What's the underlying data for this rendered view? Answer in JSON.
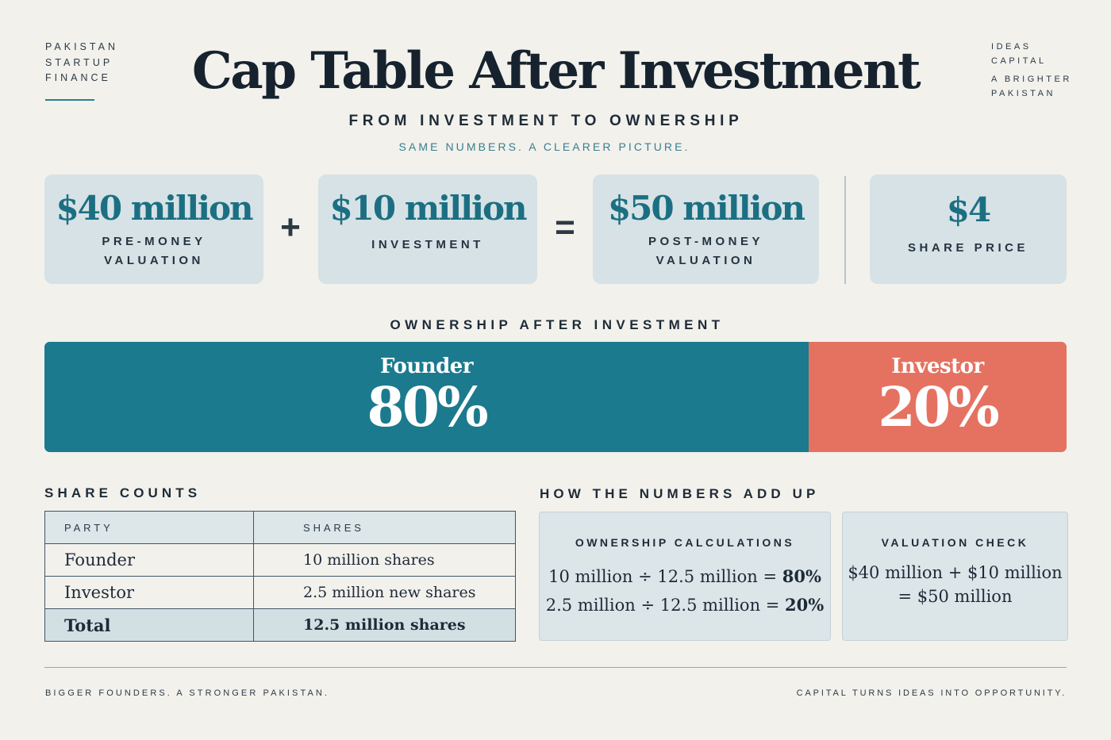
{
  "brand_left": [
    "PAKISTAN",
    "STARTUP",
    "FINANCE"
  ],
  "brand_right": [
    "IDEAS",
    "CAPITAL",
    "A BRIGHTER",
    "PAKISTAN"
  ],
  "title": "Cap Table After Investment",
  "subtitle": "FROM INVESTMENT TO OWNERSHIP",
  "tagline": "SAME NUMBERS. A CLEARER PICTURE.",
  "cards": {
    "pre_money": {
      "amount": "$40 million",
      "label_1": "PRE-MONEY",
      "label_2": "VALUATION"
    },
    "plus": "+",
    "investment": {
      "amount": "$10 million",
      "label_1": "INVESTMENT"
    },
    "equals": "=",
    "post_money": {
      "amount": "$50 million",
      "label_1": "POST-MONEY",
      "label_2": "VALUATION"
    },
    "share_price": {
      "amount": "$4",
      "label_1": "SHARE PRICE"
    }
  },
  "ownership": {
    "title": "OWNERSHIP AFTER INVESTMENT",
    "founder": {
      "name": "Founder",
      "pct_label": "80%",
      "share": 0.8,
      "color": "#1b7a8e"
    },
    "investor": {
      "name": "Investor",
      "pct_label": "20%",
      "share": 0.2,
      "color": "#e57261"
    }
  },
  "share_counts": {
    "title": "SHARE COUNTS",
    "headers": [
      "PARTY",
      "SHARES"
    ],
    "rows": [
      [
        "Founder",
        "10 million shares"
      ],
      [
        "Investor",
        "2.5 million new shares"
      ]
    ],
    "total": [
      "Total",
      "12.5 million shares"
    ]
  },
  "add_up": {
    "title": "HOW THE NUMBERS ADD UP",
    "ownership_calc": {
      "head": "OWNERSHIP CALCULATIONS",
      "row1_expr": "10 million ÷ 12.5 million = ",
      "row1_result": "80%",
      "row2_expr": "2.5 million ÷ 12.5 million = ",
      "row2_result": "20%"
    },
    "valuation_check": {
      "head": "VALUATION CHECK",
      "line1": "$40 million + $10 million",
      "line2": "= $50 million"
    }
  },
  "footer": {
    "left": "BIGGER FOUNDERS. A STRONGER PAKISTAN.",
    "right": "CAPITAL TURNS IDEAS INTO OPPORTUNITY."
  }
}
